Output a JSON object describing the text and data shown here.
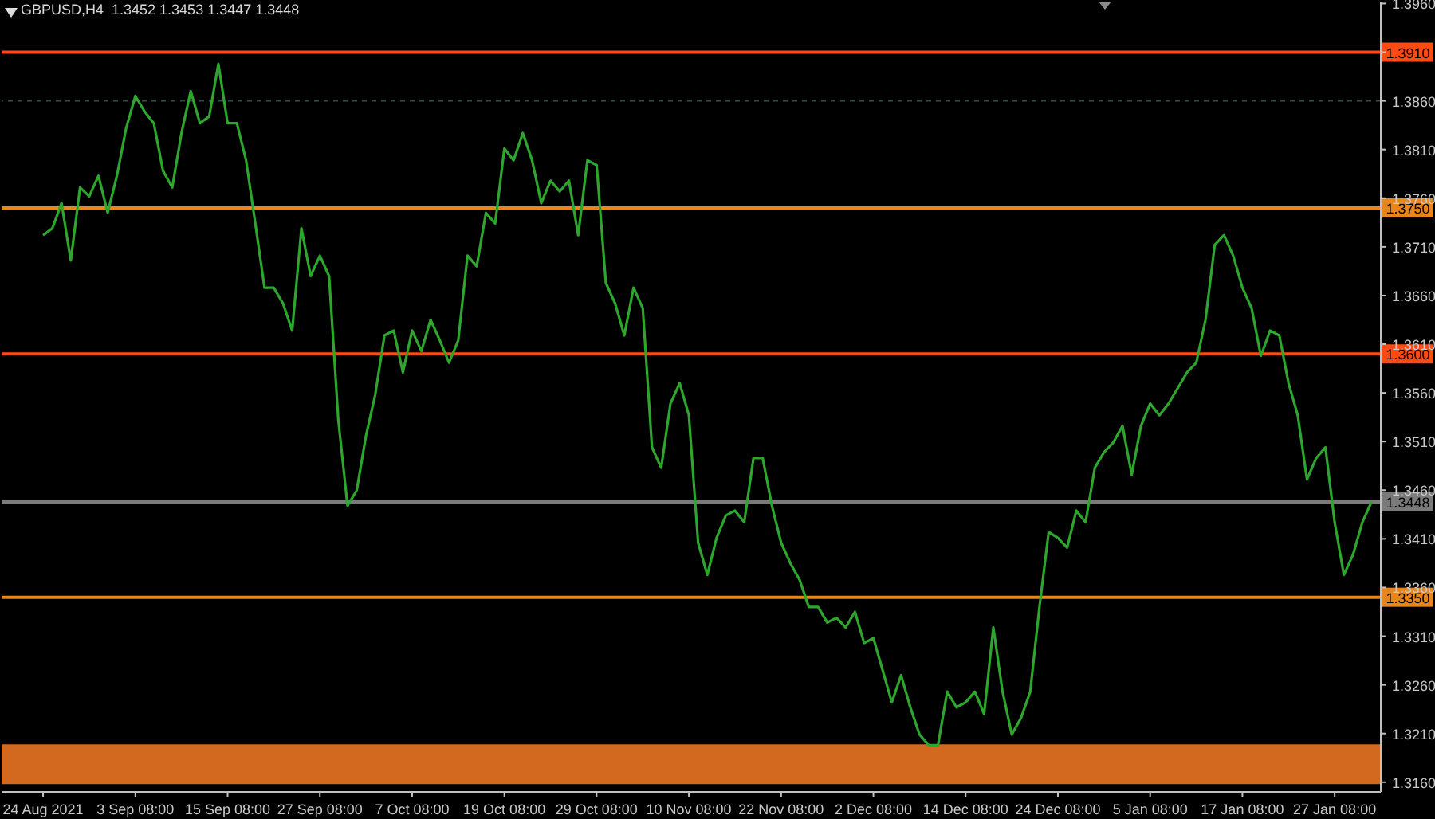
{
  "chart_data": {
    "type": "line",
    "title": "GBPUSD,H4  1.3452 1.3453 1.3447 1.3448",
    "categories": [
      "24 Aug 2021",
      null,
      null,
      null,
      null,
      null,
      null,
      null,
      null,
      null,
      "3 Sep 08:00",
      null,
      null,
      null,
      null,
      null,
      null,
      null,
      null,
      null,
      "15 Sep 08:00",
      null,
      null,
      null,
      null,
      null,
      null,
      null,
      null,
      null,
      "27 Sep 08:00",
      null,
      null,
      null,
      null,
      null,
      null,
      null,
      null,
      null,
      "7 Oct 08:00",
      null,
      null,
      null,
      null,
      null,
      null,
      null,
      null,
      null,
      "19 Oct 08:00",
      null,
      null,
      null,
      null,
      null,
      null,
      null,
      null,
      null,
      "29 Oct 08:00",
      null,
      null,
      null,
      null,
      null,
      null,
      null,
      null,
      null,
      "10 Nov 08:00",
      null,
      null,
      null,
      null,
      null,
      null,
      null,
      null,
      null,
      "22 Nov 08:00",
      null,
      null,
      null,
      null,
      null,
      null,
      null,
      null,
      null,
      "2 Dec 08:00",
      null,
      null,
      null,
      null,
      null,
      null,
      null,
      null,
      null,
      "14 Dec 08:00",
      null,
      null,
      null,
      null,
      null,
      null,
      null,
      null,
      null,
      "24 Dec 08:00",
      null,
      null,
      null,
      null,
      null,
      null,
      null,
      null,
      null,
      "5 Jan 08:00",
      null,
      null,
      null,
      null,
      null,
      null,
      null,
      null,
      null,
      "17 Jan 08:00",
      null,
      null,
      null,
      null,
      null,
      null,
      null,
      null,
      null,
      "27 Jan 08:00",
      null,
      null,
      null,
      null
    ],
    "series": [
      {
        "color": "#2ea62e",
        "values": [
          1.3722,
          1.3729,
          1.3755,
          1.3696,
          1.3771,
          1.3762,
          1.3783,
          1.3745,
          1.3783,
          1.3832,
          1.3865,
          1.3849,
          1.3837,
          1.3788,
          1.3771,
          1.3827,
          1.387,
          1.3837,
          1.3844,
          1.3898,
          1.3837,
          1.3837,
          1.3799,
          1.3734,
          1.3668,
          1.3668,
          1.3652,
          1.3624,
          1.3729,
          1.368,
          1.3701,
          1.368,
          1.3532,
          1.3444,
          1.346,
          1.3516,
          1.3558,
          1.3619,
          1.3624,
          1.3581,
          1.3624,
          1.3603,
          1.3635,
          1.3614,
          1.3591,
          1.3614,
          1.3701,
          1.369,
          1.3745,
          1.3734,
          1.3811,
          1.3799,
          1.3827,
          1.3799,
          1.3755,
          1.3778,
          1.3767,
          1.3778,
          1.3722,
          1.3799,
          1.3794,
          1.3673,
          1.3652,
          1.3619,
          1.3668,
          1.3647,
          1.3504,
          1.3483,
          1.3549,
          1.357,
          1.3537,
          1.3406,
          1.3373,
          1.3411,
          1.3434,
          1.3439,
          1.3427,
          1.3493,
          1.3493,
          1.3444,
          1.3406,
          1.3385,
          1.3368,
          1.334,
          1.334,
          1.3324,
          1.3329,
          1.3319,
          1.3335,
          1.3303,
          1.3308,
          1.3275,
          1.3242,
          1.327,
          1.3237,
          1.3209,
          1.3198,
          1.3198,
          1.3253,
          1.3237,
          1.3242,
          1.3253,
          1.323,
          1.3319,
          1.3253,
          1.3209,
          1.3226,
          1.3253,
          1.334,
          1.3417,
          1.3411,
          1.3401,
          1.3439,
          1.3427,
          1.3483,
          1.3499,
          1.3509,
          1.3526,
          1.3476,
          1.3526,
          1.3549,
          1.3537,
          1.3549,
          1.3565,
          1.3581,
          1.3591,
          1.3635,
          1.3712,
          1.3722,
          1.3701,
          1.3668,
          1.3647,
          1.3598,
          1.3624,
          1.3619,
          1.357,
          1.3537,
          1.3471,
          1.3493,
          1.3504,
          1.3427,
          1.3373,
          1.3394,
          1.3427,
          1.3448
        ]
      }
    ],
    "ylim": [
      1.315,
      1.3962
    ],
    "yticks": [
      {
        "value": 1.316,
        "label": "1.3160"
      },
      {
        "value": 1.321,
        "label": "1.3210"
      },
      {
        "value": 1.326,
        "label": "1.3260"
      },
      {
        "value": 1.331,
        "label": "1.3310"
      },
      {
        "value": 1.336,
        "label": "1.3360"
      },
      {
        "value": 1.341,
        "label": "1.3410"
      },
      {
        "value": 1.346,
        "label": "1.3460"
      },
      {
        "value": 1.351,
        "label": "1.3510"
      },
      {
        "value": 1.356,
        "label": "1.3560"
      },
      {
        "value": 1.361,
        "label": "1.3610"
      },
      {
        "value": 1.366,
        "label": "1.3660"
      },
      {
        "value": 1.371,
        "label": "1.3710"
      },
      {
        "value": 1.376,
        "label": "1.3760"
      },
      {
        "value": 1.381,
        "label": "1.3810"
      },
      {
        "value": 1.386,
        "label": "1.3860"
      },
      {
        "value": 1.391,
        "label": null
      },
      {
        "value": 1.396,
        "label": "1.3960"
      }
    ],
    "ref_lines": [
      {
        "axis": "y",
        "value": 1.391,
        "label": "1.3910",
        "color": "#ff4a14"
      },
      {
        "axis": "y",
        "value": 1.386,
        "color": "#2f4f4f",
        "line_style": "dashed"
      },
      {
        "axis": "y",
        "value": 1.375,
        "label": "1.3750",
        "color": "#e8861e"
      },
      {
        "axis": "y",
        "value": 1.36,
        "label": "1.3600",
        "color": "#ff4a14"
      },
      {
        "axis": "y",
        "value": 1.3448,
        "label": "1.3448",
        "color": "#7a7a7a"
      },
      {
        "axis": "y",
        "value": 1.335,
        "label": "1.3350",
        "color": "#e8861e"
      }
    ],
    "bands": [
      {
        "axis": "y",
        "from": 1.3158,
        "to": 1.3199,
        "color": "#d2691e"
      }
    ],
    "grid": false,
    "marker": "none",
    "line_style": "solid"
  }
}
